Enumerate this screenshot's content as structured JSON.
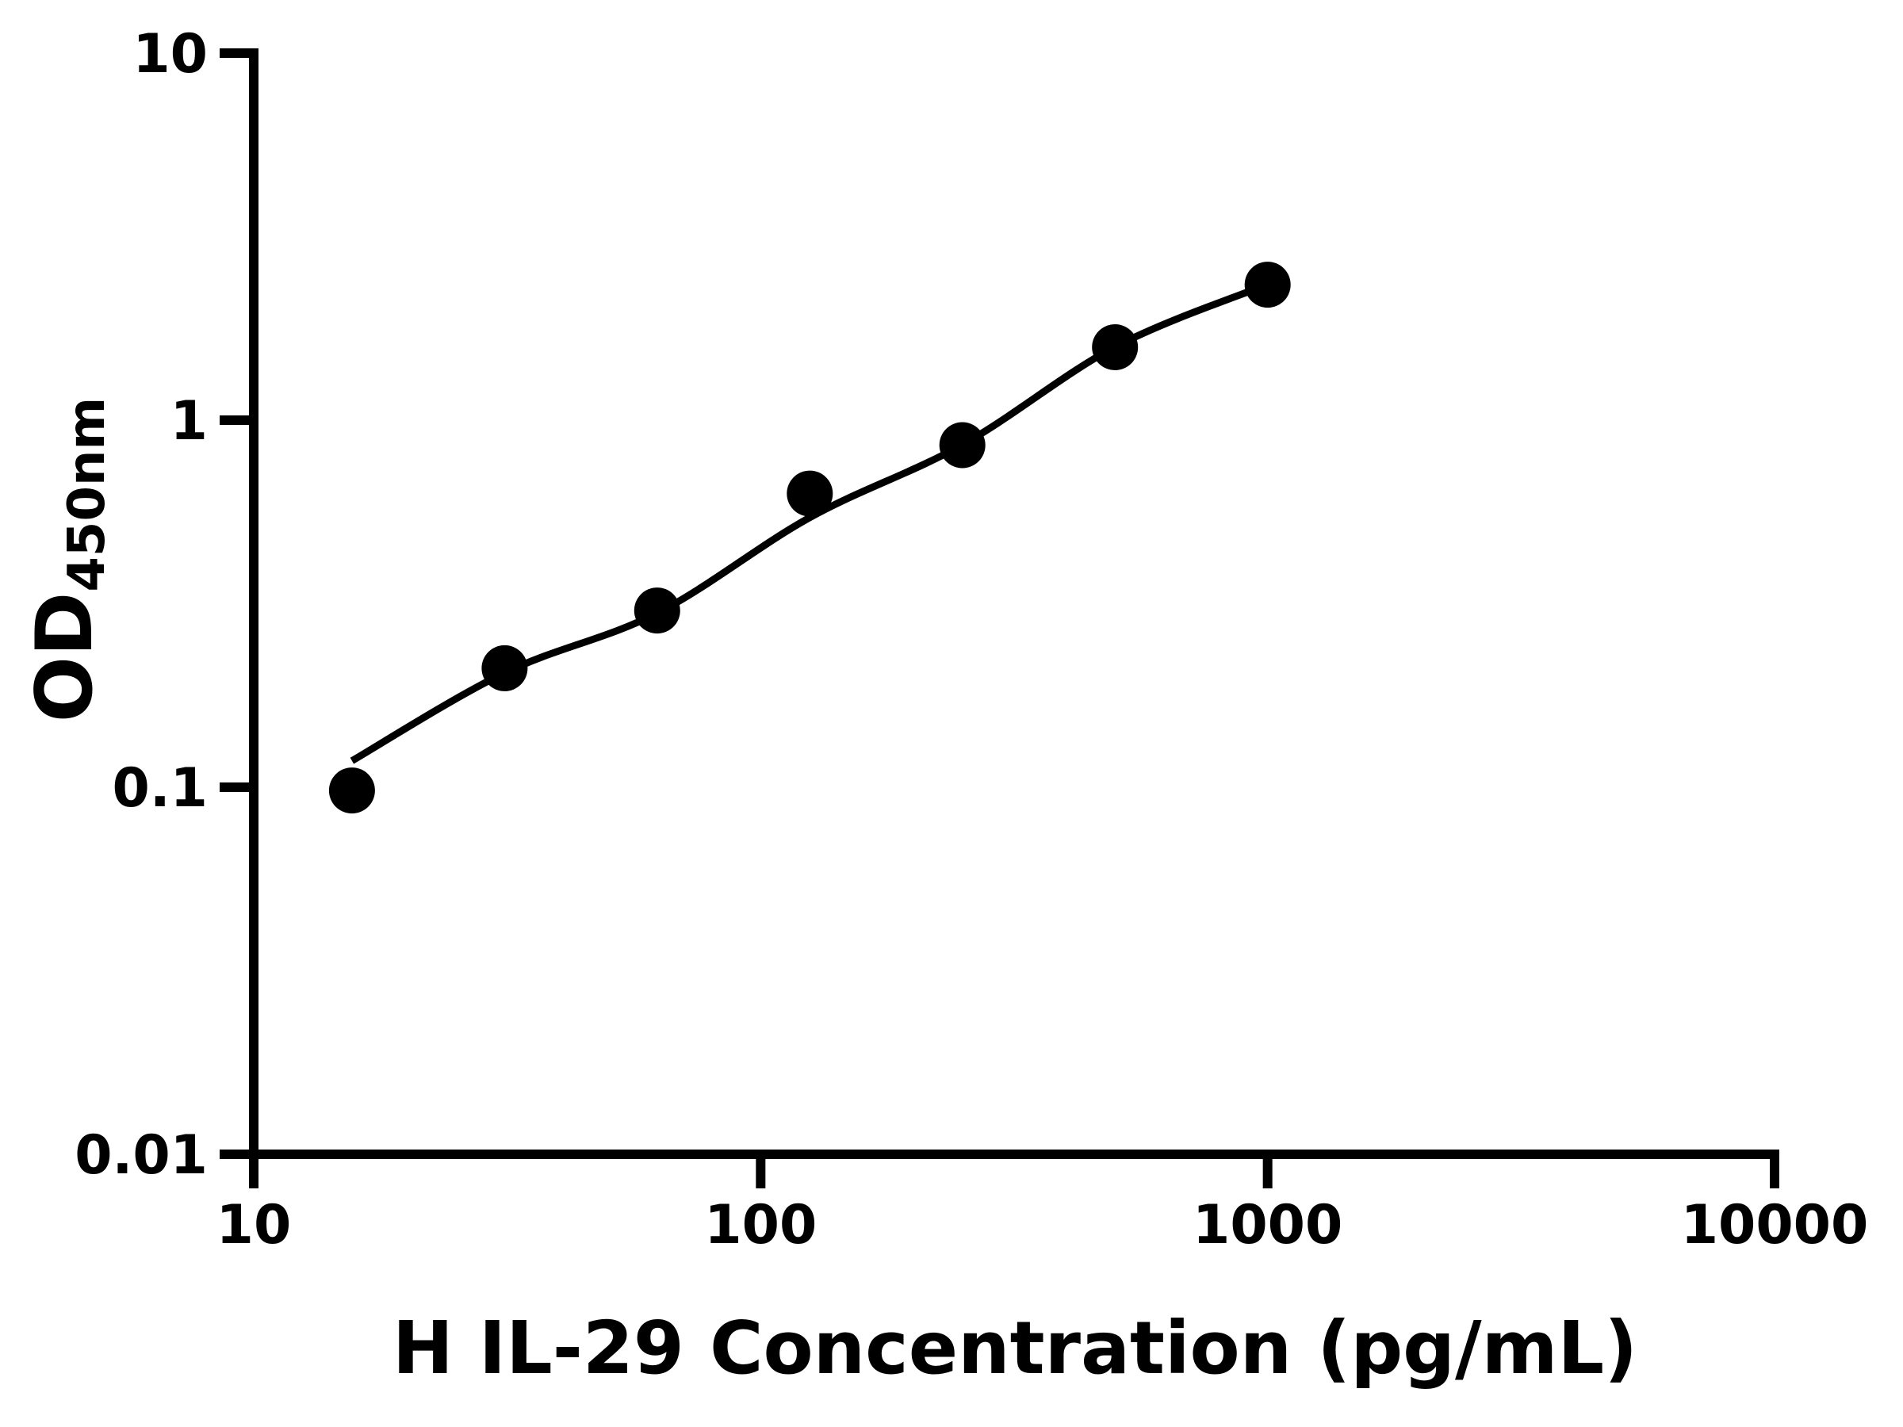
{
  "figure": {
    "background_color": "#ffffff",
    "ink_color": "#000000"
  },
  "chart_data": {
    "type": "scatter",
    "title": "",
    "xlabel": "H IL-29 Concentration (pg/mL)",
    "ylabel_main": "OD",
    "ylabel_sub": "450nm",
    "x_scale": "log",
    "y_scale": "log",
    "xlim": [
      10,
      10000
    ],
    "ylim": [
      0.01,
      10
    ],
    "grid": false,
    "legend": "none",
    "x_ticks": [
      {
        "value": 10,
        "label": "10"
      },
      {
        "value": 100,
        "label": "100"
      },
      {
        "value": 1000,
        "label": "1000"
      },
      {
        "value": 10000,
        "label": "10000"
      }
    ],
    "y_ticks": [
      {
        "value": 10,
        "label": "10"
      },
      {
        "value": 1,
        "label": "1"
      },
      {
        "value": 0.1,
        "label": "0.1"
      },
      {
        "value": 0.01,
        "label": "0.01"
      }
    ],
    "series": [
      {
        "name": "standard-data-points",
        "type": "scatter",
        "marker": "circle",
        "color": "#000000",
        "x": [
          15.625,
          31.25,
          62.5,
          125,
          250,
          500,
          1000
        ],
        "y": [
          0.098,
          0.211,
          0.303,
          0.631,
          0.855,
          1.58,
          2.34
        ]
      },
      {
        "name": "fitted-curve",
        "type": "line",
        "color": "#000000",
        "x": [
          15.625,
          31.25,
          62.5,
          125,
          250,
          500,
          1000
        ],
        "y": [
          0.118,
          0.205,
          0.298,
          0.543,
          0.857,
          1.583,
          2.344
        ]
      }
    ]
  }
}
